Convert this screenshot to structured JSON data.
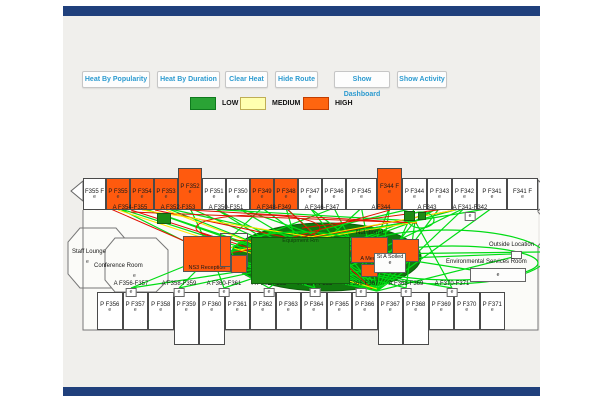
{
  "toolbar": {
    "buttons": [
      {
        "label": "Heat By Popularity"
      },
      {
        "label": "Heat By Duration"
      },
      {
        "label": "Clear Heat"
      },
      {
        "label": "Hide Route"
      },
      {
        "label": "Show Dashboard"
      },
      {
        "label": "Show Activity"
      }
    ]
  },
  "legend": {
    "items": [
      {
        "label": "LOW",
        "color": "#2aa335",
        "border": "#0f7a1d"
      },
      {
        "label": "MEDIUM",
        "color": "#ffffb0",
        "border": "#bfae55"
      },
      {
        "label": "HIGH",
        "color": "#ff650f",
        "border": "#c23d00"
      }
    ]
  },
  "colors": {
    "heat_high": "#ff5a0e",
    "heat_low": "#1e8c14",
    "heat_medium": "#ffffb0",
    "route_normal": "#00dc14",
    "route_alert": "#e01000",
    "route_medium": "#ffe400"
  },
  "floorplan": {
    "door_letter": "e",
    "top_rooms": [
      {
        "label": "F355 F",
        "heat": "none"
      },
      {
        "label": "P F355",
        "heat": "high"
      },
      {
        "label": "P F354",
        "heat": "high"
      },
      {
        "label": "P F353",
        "heat": "high"
      },
      {
        "label": "P F352",
        "heat": "high"
      },
      {
        "label": "P F351",
        "heat": "none"
      },
      {
        "label": "P F350",
        "heat": "none"
      },
      {
        "label": "P F349",
        "heat": "high"
      },
      {
        "label": "P F348",
        "heat": "high"
      },
      {
        "label": "P F347",
        "heat": "none"
      },
      {
        "label": "P F346",
        "heat": "none"
      },
      {
        "label": "P F345",
        "heat": "none"
      },
      {
        "label": "F344 F",
        "heat": "high"
      },
      {
        "label": "P F344",
        "heat": "none"
      },
      {
        "label": "P F343",
        "heat": "none"
      },
      {
        "label": "P F342",
        "heat": "none"
      },
      {
        "label": "P F341",
        "heat": "none"
      },
      {
        "label": "F341 F",
        "heat": "none"
      }
    ],
    "bottom_rooms": [
      {
        "label": "P F356",
        "heat": "none"
      },
      {
        "label": "P F357",
        "heat": "none"
      },
      {
        "label": "P F358",
        "heat": "none"
      },
      {
        "label": "P F359",
        "heat": "none"
      },
      {
        "label": "P F360",
        "heat": "none"
      },
      {
        "label": "P F361",
        "heat": "none"
      },
      {
        "label": "P F362",
        "heat": "none"
      },
      {
        "label": "P F363",
        "heat": "none"
      },
      {
        "label": "P F364",
        "heat": "none"
      },
      {
        "label": "P F365",
        "heat": "none"
      },
      {
        "label": "P F366",
        "heat": "none"
      },
      {
        "label": "P F367",
        "heat": "none"
      },
      {
        "label": "P F368",
        "heat": "none"
      },
      {
        "label": "P F369",
        "heat": "none"
      },
      {
        "label": "P F370",
        "heat": "none"
      },
      {
        "label": "P F371",
        "heat": "none"
      }
    ],
    "top_corridor_labels": [
      "A F354-F355",
      "A F352-F353",
      "A F350-F351",
      "A F348-F349",
      "A F346-F347",
      "A F344",
      "A F343",
      "A F341-F342"
    ],
    "bottom_corridor_labels": [
      "A F356-F357",
      "A F358-F359",
      "A F360-F361",
      "A F362-F363",
      "A F364-F365",
      "A F366-F367",
      "A F368-F369",
      "A F370-F371"
    ],
    "areas": {
      "staff_lounge": {
        "label": "Staff Lounge"
      },
      "conference_room": {
        "label": "Conference Room"
      },
      "ns3": {
        "label": "NS3 Reception",
        "heat": "high"
      },
      "equipment": {
        "label": "Equipment Rm",
        "heat": "low"
      },
      "meds": {
        "label": "A Meds",
        "heat": "high"
      },
      "soiled": {
        "label": "St A Soiled"
      },
      "nutritional": {
        "label": "Nutritional"
      },
      "outside": {
        "label": "Outside Location"
      },
      "env_services": {
        "label": "Environmental Services Room"
      }
    }
  }
}
